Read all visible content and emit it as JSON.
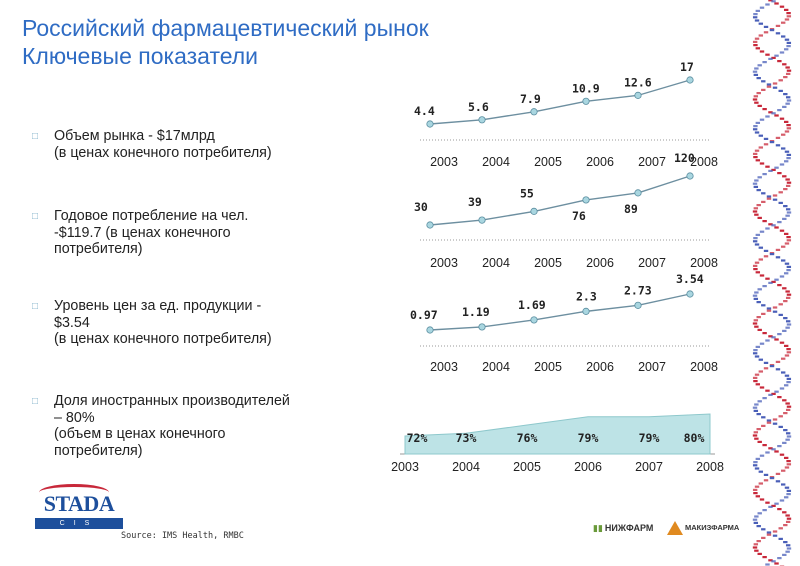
{
  "title": {
    "line1": "Российский фармацевтический рынок",
    "line2": "Ключевые показатели"
  },
  "bullets": [
    {
      "lines": [
        "Объем рынка - $17млрд",
        "(в ценах конечного потребителя)"
      ]
    },
    {
      "lines": [
        "Годовое потребление на чел.",
        "-$119.7 (в ценах конечного",
        "потребителя)"
      ]
    },
    {
      "lines": [
        "Уровень цен за ед. продукции -",
        "$3.54",
        "(в ценах конечного потребителя)"
      ]
    },
    {
      "lines": [
        "Доля иностранных производителей",
        "– 80%",
        "(объем в ценах конечного",
        "потребителя)"
      ]
    }
  ],
  "source": "Source: IMS Health, RMBC",
  "logos": {
    "stada_name": "STADA",
    "stada_sub": "CIS",
    "nizhfarm": "НИЖФАРМ",
    "makiz": "МАКИЗФАРМА"
  },
  "colors": {
    "title": "#2f6cc4",
    "line": "#6d8fa0",
    "marker": "#a9d6e0",
    "area": "#bde3e6",
    "dna_red": "#c8283a",
    "dna_blue": "#4a5fb8"
  },
  "chart_data": [
    {
      "type": "line",
      "categories": [
        "2003",
        "2004",
        "2005",
        "2006",
        "2007",
        "2008"
      ],
      "values": [
        4.4,
        5.6,
        7.9,
        10.9,
        12.6,
        17
      ],
      "labels": [
        "4.4",
        "5.6",
        "7.9",
        "10.9",
        "12.6",
        "17"
      ]
    },
    {
      "type": "line",
      "categories": [
        "2003",
        "2004",
        "2005",
        "2006",
        "2007",
        "2008"
      ],
      "values": [
        30,
        39,
        55,
        76,
        89,
        120
      ],
      "labels": [
        "30",
        "39",
        "55",
        "76",
        "89",
        "120"
      ]
    },
    {
      "type": "line",
      "categories": [
        "2003",
        "2004",
        "2005",
        "2006",
        "2007",
        "2008"
      ],
      "values": [
        0.97,
        1.19,
        1.69,
        2.3,
        2.73,
        3.54
      ],
      "labels": [
        "0.97",
        "1.19",
        "1.69",
        "2.3",
        "2.73",
        "3.54"
      ]
    },
    {
      "type": "area",
      "categories": [
        "2003",
        "2004",
        "2005",
        "2006",
        "2007",
        "2008"
      ],
      "values": [
        72,
        73,
        76,
        79,
        79,
        80
      ],
      "labels": [
        "72%",
        "73%",
        "76%",
        "79%",
        "79%",
        "80%"
      ]
    }
  ]
}
